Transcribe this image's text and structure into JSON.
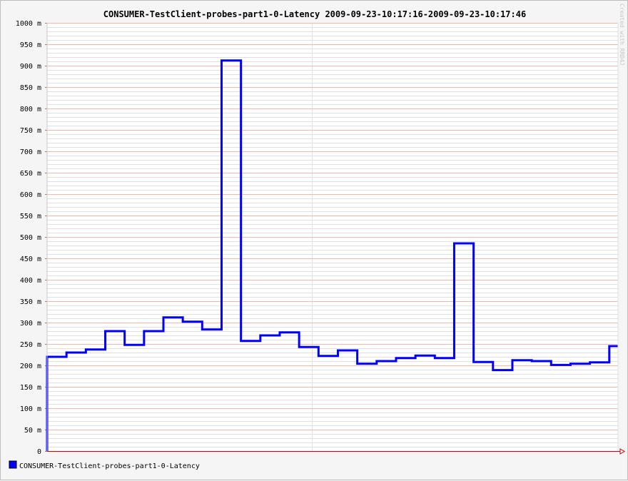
{
  "chart_data": {
    "type": "line",
    "title": "CONSUMER-TestClient-probes-part1-0-Latency 2009-09-23-10:17:16-2009-09-23-10:17:46",
    "credit": "Created with RRD4J",
    "ylim": [
      0,
      1000
    ],
    "y_ticks": [
      {
        "value": 0,
        "label": "0"
      },
      {
        "value": 50,
        "label": "50 m"
      },
      {
        "value": 100,
        "label": "100 m"
      },
      {
        "value": 150,
        "label": "150 m"
      },
      {
        "value": 200,
        "label": "200 m"
      },
      {
        "value": 250,
        "label": "250 m"
      },
      {
        "value": 300,
        "label": "300 m"
      },
      {
        "value": 350,
        "label": "350 m"
      },
      {
        "value": 400,
        "label": "400 m"
      },
      {
        "value": 450,
        "label": "450 m"
      },
      {
        "value": 500,
        "label": "500 m"
      },
      {
        "value": 550,
        "label": "550 m"
      },
      {
        "value": 600,
        "label": "600 m"
      },
      {
        "value": 650,
        "label": "650 m"
      },
      {
        "value": 700,
        "label": "700 m"
      },
      {
        "value": 750,
        "label": "750 m"
      },
      {
        "value": 800,
        "label": "800 m"
      },
      {
        "value": 850,
        "label": "850 m"
      },
      {
        "value": 900,
        "label": "900 m"
      },
      {
        "value": 950,
        "label": "950 m"
      },
      {
        "value": 1000,
        "label": "1000 m"
      }
    ],
    "grid": true,
    "legend_placement": "bottom-left",
    "series": [
      {
        "name": "CONSUMER-TestClient-probes-part1-0-Latency",
        "color": "#0000ff",
        "step": true,
        "values": [
          220,
          230,
          237,
          280,
          248,
          280,
          312,
          302,
          284,
          912,
          257,
          270,
          277,
          243,
          222,
          235,
          204,
          210,
          217,
          223,
          217,
          485,
          208,
          189,
          212,
          210,
          201,
          204,
          207,
          245
        ]
      }
    ]
  }
}
